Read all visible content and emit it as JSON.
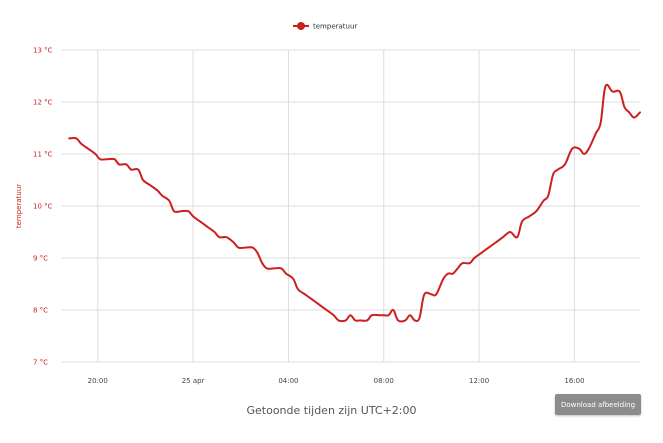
{
  "colors": {
    "series": "#cc1f1f",
    "grid": "#dddddd",
    "button_bg": "#8c8c8c"
  },
  "footer": {
    "timezone_note": "Getoonde tijden zijn UTC+2:00"
  },
  "download_button": {
    "label": "Download afbeelding"
  },
  "chart_data": {
    "type": "line",
    "ylabel": "temperatuur",
    "ylim": [
      7,
      13
    ],
    "yticks": [
      {
        "value": 7,
        "label": "7 °C"
      },
      {
        "value": 8,
        "label": "8 °C"
      },
      {
        "value": 9,
        "label": "9 °C"
      },
      {
        "value": 10,
        "label": "10 °C"
      },
      {
        "value": 11,
        "label": "11 °C"
      },
      {
        "value": 12,
        "label": "12 °C"
      },
      {
        "value": 13,
        "label": "13 °C"
      }
    ],
    "x_unit": "hours",
    "xlim": [
      18.5,
      42.75
    ],
    "xticks": [
      {
        "value": 20,
        "label": "20:00"
      },
      {
        "value": 24,
        "label": "25 apr"
      },
      {
        "value": 28,
        "label": "04:00"
      },
      {
        "value": 32,
        "label": "08:00"
      },
      {
        "value": 36,
        "label": "12:00"
      },
      {
        "value": 40,
        "label": "16:00"
      }
    ],
    "grid": true,
    "legend_position": "top-center",
    "series": [
      {
        "name": "temperatuur",
        "color": "#cc1f1f",
        "points": [
          [
            18.8,
            11.3
          ],
          [
            19.1,
            11.3
          ],
          [
            19.3,
            11.2
          ],
          [
            19.6,
            11.1
          ],
          [
            19.9,
            11.0
          ],
          [
            20.1,
            10.9
          ],
          [
            20.4,
            10.9
          ],
          [
            20.7,
            10.9
          ],
          [
            20.9,
            10.8
          ],
          [
            21.2,
            10.8
          ],
          [
            21.4,
            10.7
          ],
          [
            21.7,
            10.7
          ],
          [
            21.9,
            10.5
          ],
          [
            22.2,
            10.4
          ],
          [
            22.5,
            10.3
          ],
          [
            22.7,
            10.2
          ],
          [
            23.0,
            10.1
          ],
          [
            23.2,
            9.9
          ],
          [
            23.5,
            9.9
          ],
          [
            23.8,
            9.9
          ],
          [
            24.0,
            9.8
          ],
          [
            24.3,
            9.7
          ],
          [
            24.6,
            9.6
          ],
          [
            24.9,
            9.5
          ],
          [
            25.1,
            9.4
          ],
          [
            25.4,
            9.4
          ],
          [
            25.7,
            9.3
          ],
          [
            25.9,
            9.2
          ],
          [
            26.2,
            9.2
          ],
          [
            26.5,
            9.2
          ],
          [
            26.7,
            9.1
          ],
          [
            26.9,
            8.9
          ],
          [
            27.1,
            8.8
          ],
          [
            27.4,
            8.8
          ],
          [
            27.7,
            8.8
          ],
          [
            27.9,
            8.7
          ],
          [
            28.2,
            8.6
          ],
          [
            28.4,
            8.4
          ],
          [
            28.7,
            8.3
          ],
          [
            29.0,
            8.2
          ],
          [
            29.3,
            8.1
          ],
          [
            29.6,
            8.0
          ],
          [
            29.9,
            7.9
          ],
          [
            30.1,
            7.8
          ],
          [
            30.4,
            7.8
          ],
          [
            30.6,
            7.9
          ],
          [
            30.8,
            7.8
          ],
          [
            31.0,
            7.8
          ],
          [
            31.3,
            7.8
          ],
          [
            31.5,
            7.9
          ],
          [
            31.8,
            7.9
          ],
          [
            32.0,
            7.9
          ],
          [
            32.2,
            7.9
          ],
          [
            32.4,
            8.0
          ],
          [
            32.6,
            7.8
          ],
          [
            32.9,
            7.8
          ],
          [
            33.1,
            7.9
          ],
          [
            33.3,
            7.8
          ],
          [
            33.5,
            7.85
          ],
          [
            33.7,
            8.3
          ],
          [
            34.0,
            8.3
          ],
          [
            34.2,
            8.3
          ],
          [
            34.5,
            8.6
          ],
          [
            34.7,
            8.7
          ],
          [
            34.9,
            8.7
          ],
          [
            35.1,
            8.8
          ],
          [
            35.3,
            8.9
          ],
          [
            35.6,
            8.9
          ],
          [
            35.8,
            9.0
          ],
          [
            36.1,
            9.1
          ],
          [
            36.4,
            9.2
          ],
          [
            36.7,
            9.3
          ],
          [
            37.0,
            9.4
          ],
          [
            37.3,
            9.5
          ],
          [
            37.6,
            9.4
          ],
          [
            37.8,
            9.7
          ],
          [
            38.1,
            9.8
          ],
          [
            38.4,
            9.9
          ],
          [
            38.7,
            10.1
          ],
          [
            38.9,
            10.2
          ],
          [
            39.1,
            10.6
          ],
          [
            39.3,
            10.7
          ],
          [
            39.6,
            10.8
          ],
          [
            39.9,
            11.1
          ],
          [
            40.2,
            11.1
          ],
          [
            40.4,
            11.0
          ],
          [
            40.6,
            11.1
          ],
          [
            40.9,
            11.4
          ],
          [
            41.1,
            11.6
          ],
          [
            41.3,
            12.3
          ],
          [
            41.6,
            12.2
          ],
          [
            41.9,
            12.2
          ],
          [
            42.1,
            11.9
          ],
          [
            42.3,
            11.8
          ],
          [
            42.5,
            11.7
          ],
          [
            42.75,
            11.8
          ]
        ]
      }
    ]
  }
}
